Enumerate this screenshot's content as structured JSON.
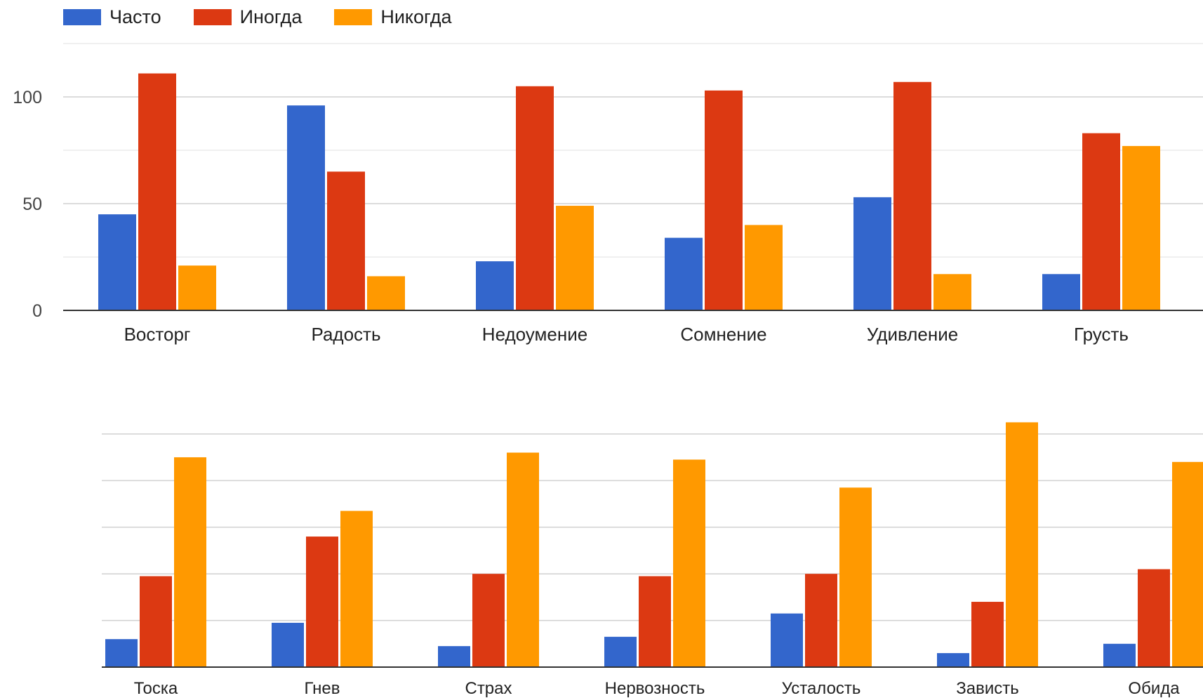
{
  "legend": [
    {
      "label": "Часто",
      "color": "#3366cc"
    },
    {
      "label": "Иногда",
      "color": "#dc3912"
    },
    {
      "label": "Никогда",
      "color": "#ff9900"
    }
  ],
  "chart_data": [
    {
      "type": "bar",
      "categories": [
        "Восторг",
        "Радость",
        "Недоумение",
        "Сомнение",
        "Удивление",
        "Грусть"
      ],
      "series": [
        {
          "name": "Часто",
          "color": "#3366cc",
          "values": [
            45,
            96,
            23,
            34,
            53,
            17
          ]
        },
        {
          "name": "Иногда",
          "color": "#dc3912",
          "values": [
            111,
            65,
            105,
            103,
            107,
            83
          ]
        },
        {
          "name": "Никогда",
          "color": "#ff9900",
          "values": [
            21,
            16,
            49,
            40,
            17,
            77
          ]
        }
      ],
      "ylim": [
        0,
        125
      ],
      "yticks": [
        0,
        50,
        100
      ],
      "grid": true,
      "legend_position": "top-left"
    },
    {
      "type": "bar",
      "categories": [
        "Тоска",
        "Гнев",
        "Страх",
        "Нервозность",
        "Усталость",
        "Зависть",
        "Обида"
      ],
      "series": [
        {
          "name": "Часто",
          "color": "#3366cc",
          "values": [
            12,
            19,
            9,
            13,
            23,
            6,
            10
          ]
        },
        {
          "name": "Иногда",
          "color": "#dc3912",
          "values": [
            39,
            56,
            40,
            39,
            40,
            28,
            42
          ]
        },
        {
          "name": "Никогда",
          "color": "#ff9900",
          "values": [
            90,
            67,
            92,
            89,
            77,
            105,
            88
          ]
        }
      ],
      "ylim": [
        0,
        100
      ],
      "grid": true
    }
  ]
}
